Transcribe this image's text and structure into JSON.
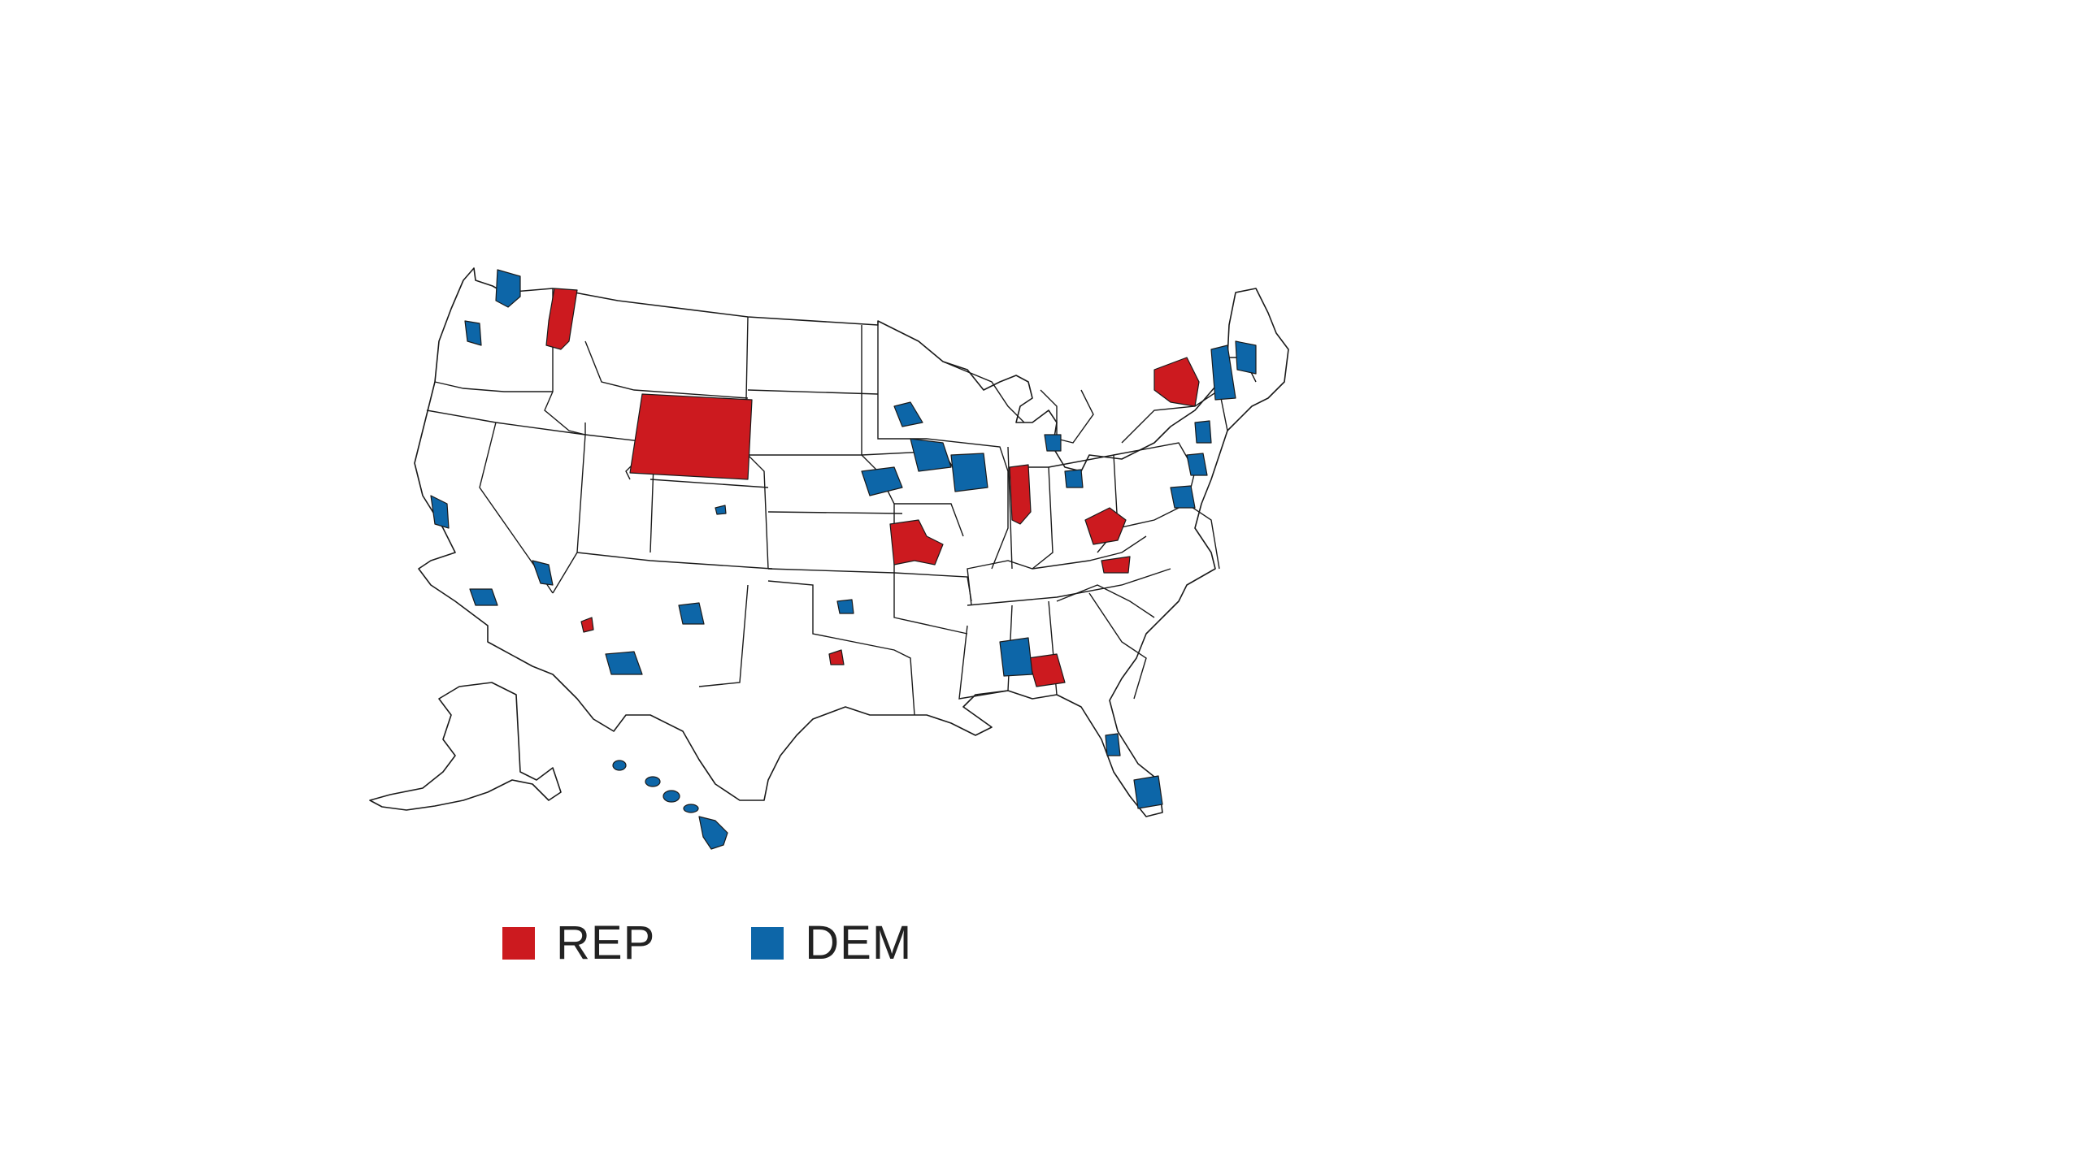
{
  "colors": {
    "rep": "#cc1a1f",
    "dem": "#0d66a8",
    "land": "#ffffff",
    "border": "#1a1a1a"
  },
  "legend": {
    "items": [
      {
        "label": "REP",
        "party": "rep"
      },
      {
        "label": "DEM",
        "party": "dem"
      }
    ]
  }
}
